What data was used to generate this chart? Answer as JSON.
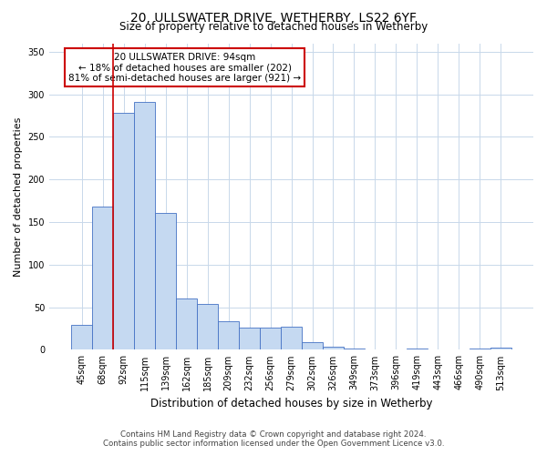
{
  "title": "20, ULLSWATER DRIVE, WETHERBY, LS22 6YF",
  "subtitle": "Size of property relative to detached houses in Wetherby",
  "xlabel": "Distribution of detached houses by size in Wetherby",
  "ylabel": "Number of detached properties",
  "bar_labels": [
    "45sqm",
    "68sqm",
    "92sqm",
    "115sqm",
    "139sqm",
    "162sqm",
    "185sqm",
    "209sqm",
    "232sqm",
    "256sqm",
    "279sqm",
    "302sqm",
    "326sqm",
    "349sqm",
    "373sqm",
    "396sqm",
    "419sqm",
    "443sqm",
    "466sqm",
    "490sqm",
    "513sqm"
  ],
  "bar_values": [
    29,
    168,
    278,
    291,
    161,
    60,
    54,
    34,
    26,
    26,
    27,
    9,
    4,
    1,
    0,
    0,
    1,
    0,
    0,
    1,
    3
  ],
  "bar_color": "#c5d9f1",
  "bar_edge_color": "#4472c4",
  "vline_color": "#cc0000",
  "annotation_title": "20 ULLSWATER DRIVE: 94sqm",
  "annotation_line1": "← 18% of detached houses are smaller (202)",
  "annotation_line2": "81% of semi-detached houses are larger (921) →",
  "annotation_box_edge_color": "#cc0000",
  "ylim": [
    0,
    360
  ],
  "yticks": [
    0,
    50,
    100,
    150,
    200,
    250,
    300,
    350
  ],
  "footer_line1": "Contains HM Land Registry data © Crown copyright and database right 2024.",
  "footer_line2": "Contains public sector information licensed under the Open Government Licence v3.0.",
  "bg_color": "#ffffff",
  "grid_color": "#c8d8ea"
}
